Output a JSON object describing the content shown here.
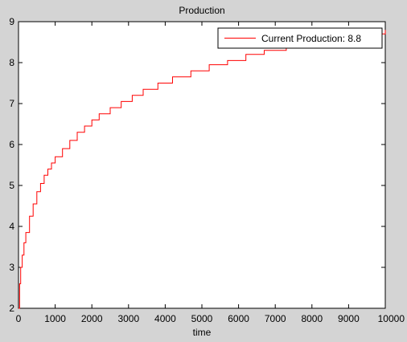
{
  "chart_data": {
    "type": "line",
    "title": "Production",
    "xlabel": "time",
    "ylabel": "",
    "xlim": [
      0,
      10000
    ],
    "ylim": [
      2,
      9
    ],
    "xticks": [
      "0",
      "1000",
      "2000",
      "3000",
      "4000",
      "5000",
      "6000",
      "7000",
      "8000",
      "9000",
      "10000"
    ],
    "yticks": [
      "2",
      "3",
      "4",
      "5",
      "6",
      "7",
      "8",
      "9"
    ],
    "grid": false,
    "legend_position": "top-right",
    "series": [
      {
        "name": "Current Production: 8.8",
        "color": "#ff0000",
        "step": true,
        "x": [
          0,
          30,
          60,
          100,
          150,
          200,
          300,
          400,
          500,
          600,
          700,
          800,
          900,
          1000,
          1200,
          1400,
          1600,
          1800,
          2000,
          2200,
          2500,
          2800,
          3100,
          3400,
          3800,
          4200,
          4700,
          5200,
          5700,
          6200,
          6700,
          7300,
          7900,
          8600,
          9300,
          10000
        ],
        "y": [
          2.0,
          2.6,
          3.0,
          3.3,
          3.6,
          3.85,
          4.25,
          4.55,
          4.85,
          5.05,
          5.25,
          5.4,
          5.55,
          5.7,
          5.9,
          6.1,
          6.3,
          6.45,
          6.6,
          6.75,
          6.9,
          7.05,
          7.2,
          7.35,
          7.5,
          7.65,
          7.8,
          7.95,
          8.05,
          8.2,
          8.3,
          8.4,
          8.5,
          8.6,
          8.7,
          8.8
        ]
      }
    ]
  },
  "colors": {
    "figure_background": "#d4d4d4",
    "axes_background": "#ffffff",
    "series_line": "#ff0000"
  }
}
